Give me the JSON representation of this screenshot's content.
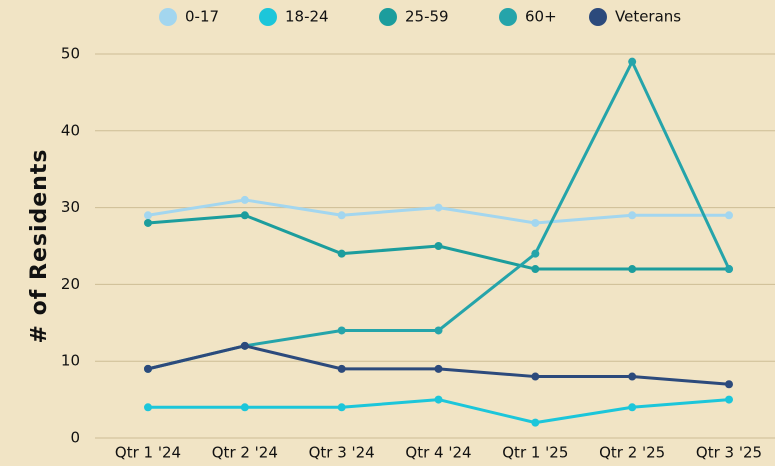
{
  "chart_data": {
    "type": "line",
    "y_label": "# of Residents",
    "categories": [
      "Qtr 1 '24",
      "Qtr 2 '24",
      "Qtr 3 '24",
      "Qtr 4 '24",
      "Qtr 1 '25",
      "Qtr 2 '25",
      "Qtr 3 '25"
    ],
    "series": [
      {
        "name": "0-17",
        "color": "#a3d6ef",
        "values": [
          29,
          31,
          29,
          30,
          28,
          29,
          29
        ]
      },
      {
        "name": "18-24",
        "color": "#1cc6da",
        "values": [
          4,
          4,
          4,
          5,
          2,
          4,
          5
        ]
      },
      {
        "name": "25-59",
        "color": "#1c9d9d",
        "values": [
          28,
          29,
          24,
          25,
          22,
          22,
          22
        ]
      },
      {
        "name": "60+",
        "color": "#25a4aa",
        "values": [
          9,
          12,
          14,
          14,
          24,
          49,
          22
        ]
      },
      {
        "name": "Veterans",
        "color": "#2c4a7c",
        "values": [
          9,
          12,
          9,
          9,
          8,
          8,
          7
        ]
      }
    ],
    "ylim": [
      0,
      50
    ],
    "yticks": [
      0,
      10,
      20,
      30,
      40,
      50
    ],
    "grid": true,
    "legend": "top"
  }
}
